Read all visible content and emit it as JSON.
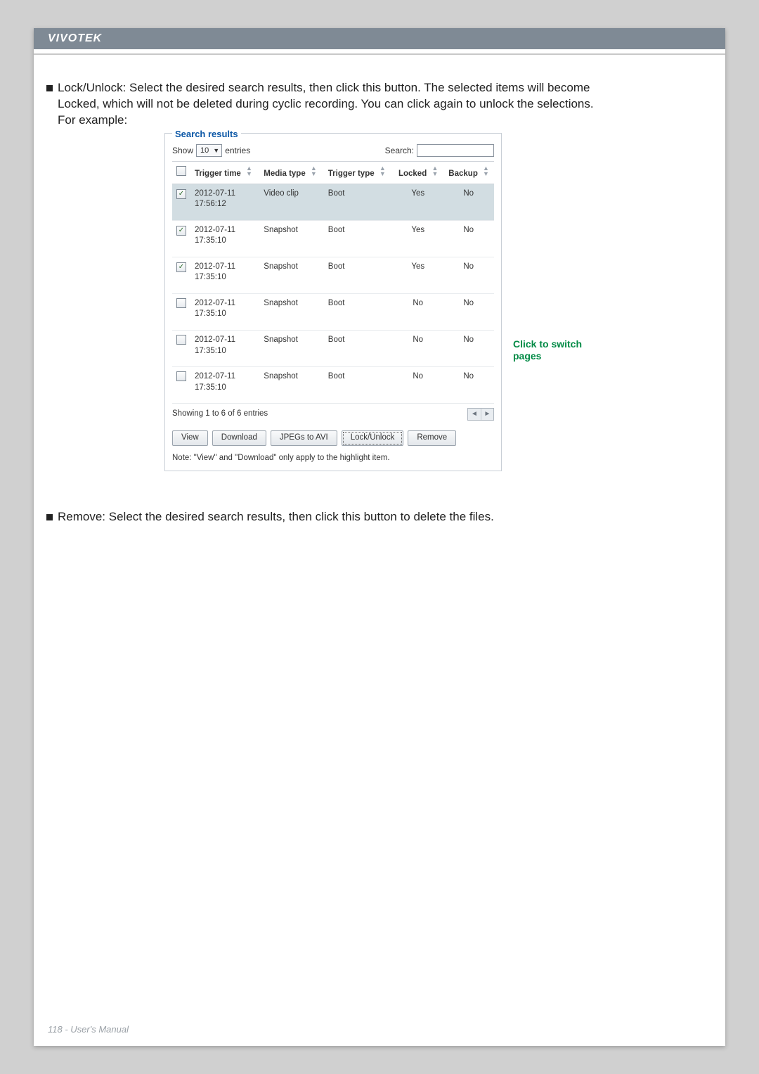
{
  "doc": {
    "brand": "VIVOTEK",
    "footer": "118 - User's Manual"
  },
  "para": {
    "lockUnlock_lead": "Lock/Unlock: Select the desired search results, then click this button. The selected items will become",
    "lockUnlock_line2": "Locked, which will not be deleted during cyclic recording. You can click again to unlock the selections.",
    "lockUnlock_line3": "For example:",
    "remove": "Remove: Select the desired search results, then click this button to delete the files."
  },
  "panel": {
    "title": "Search results",
    "show_label_pre": "Show",
    "show_value": "10",
    "show_label_post": "entries",
    "search_label": "Search:",
    "columns": {
      "trigger_time": "Trigger time",
      "media_type": "Media type",
      "trigger_type": "Trigger type",
      "locked": "Locked",
      "backup": "Backup"
    },
    "rows": [
      {
        "checked": true,
        "selected": true,
        "trigger_time_date": "2012-07-11",
        "trigger_time_time": "17:56:12",
        "media_type": "Video clip",
        "trigger_type": "Boot",
        "locked": "Yes",
        "backup": "No"
      },
      {
        "checked": true,
        "selected": false,
        "trigger_time_date": "2012-07-11",
        "trigger_time_time": "17:35:10",
        "media_type": "Snapshot",
        "trigger_type": "Boot",
        "locked": "Yes",
        "backup": "No"
      },
      {
        "checked": true,
        "selected": false,
        "trigger_time_date": "2012-07-11",
        "trigger_time_time": "17:35:10",
        "media_type": "Snapshot",
        "trigger_type": "Boot",
        "locked": "Yes",
        "backup": "No"
      },
      {
        "checked": false,
        "selected": false,
        "trigger_time_date": "2012-07-11",
        "trigger_time_time": "17:35:10",
        "media_type": "Snapshot",
        "trigger_type": "Boot",
        "locked": "No",
        "backup": "No"
      },
      {
        "checked": false,
        "selected": false,
        "trigger_time_date": "2012-07-11",
        "trigger_time_time": "17:35:10",
        "media_type": "Snapshot",
        "trigger_type": "Boot",
        "locked": "No",
        "backup": "No"
      },
      {
        "checked": false,
        "selected": false,
        "trigger_time_date": "2012-07-11",
        "trigger_time_time": "17:35:10",
        "media_type": "Snapshot",
        "trigger_type": "Boot",
        "locked": "No",
        "backup": "No"
      }
    ],
    "showing_text": "Showing 1 to 6 of 6 entries",
    "buttons": {
      "view": "View",
      "download": "Download",
      "jpegs_to_avi": "JPEGs to AVI",
      "lock_unlock": "Lock/Unlock",
      "remove": "Remove"
    },
    "note": "Note: \"View\" and \"Download\" only apply to the highlight item."
  },
  "annotation": {
    "click_switch_line1": "Click to switch",
    "click_switch_line2": "pages"
  },
  "style": {
    "page_bg": "#d0d0d0",
    "header_bg": "#7f8a95",
    "accent_green": "#018a45",
    "accent_blue": "#0b57a6",
    "row_selected_bg": "#d2dde2"
  }
}
